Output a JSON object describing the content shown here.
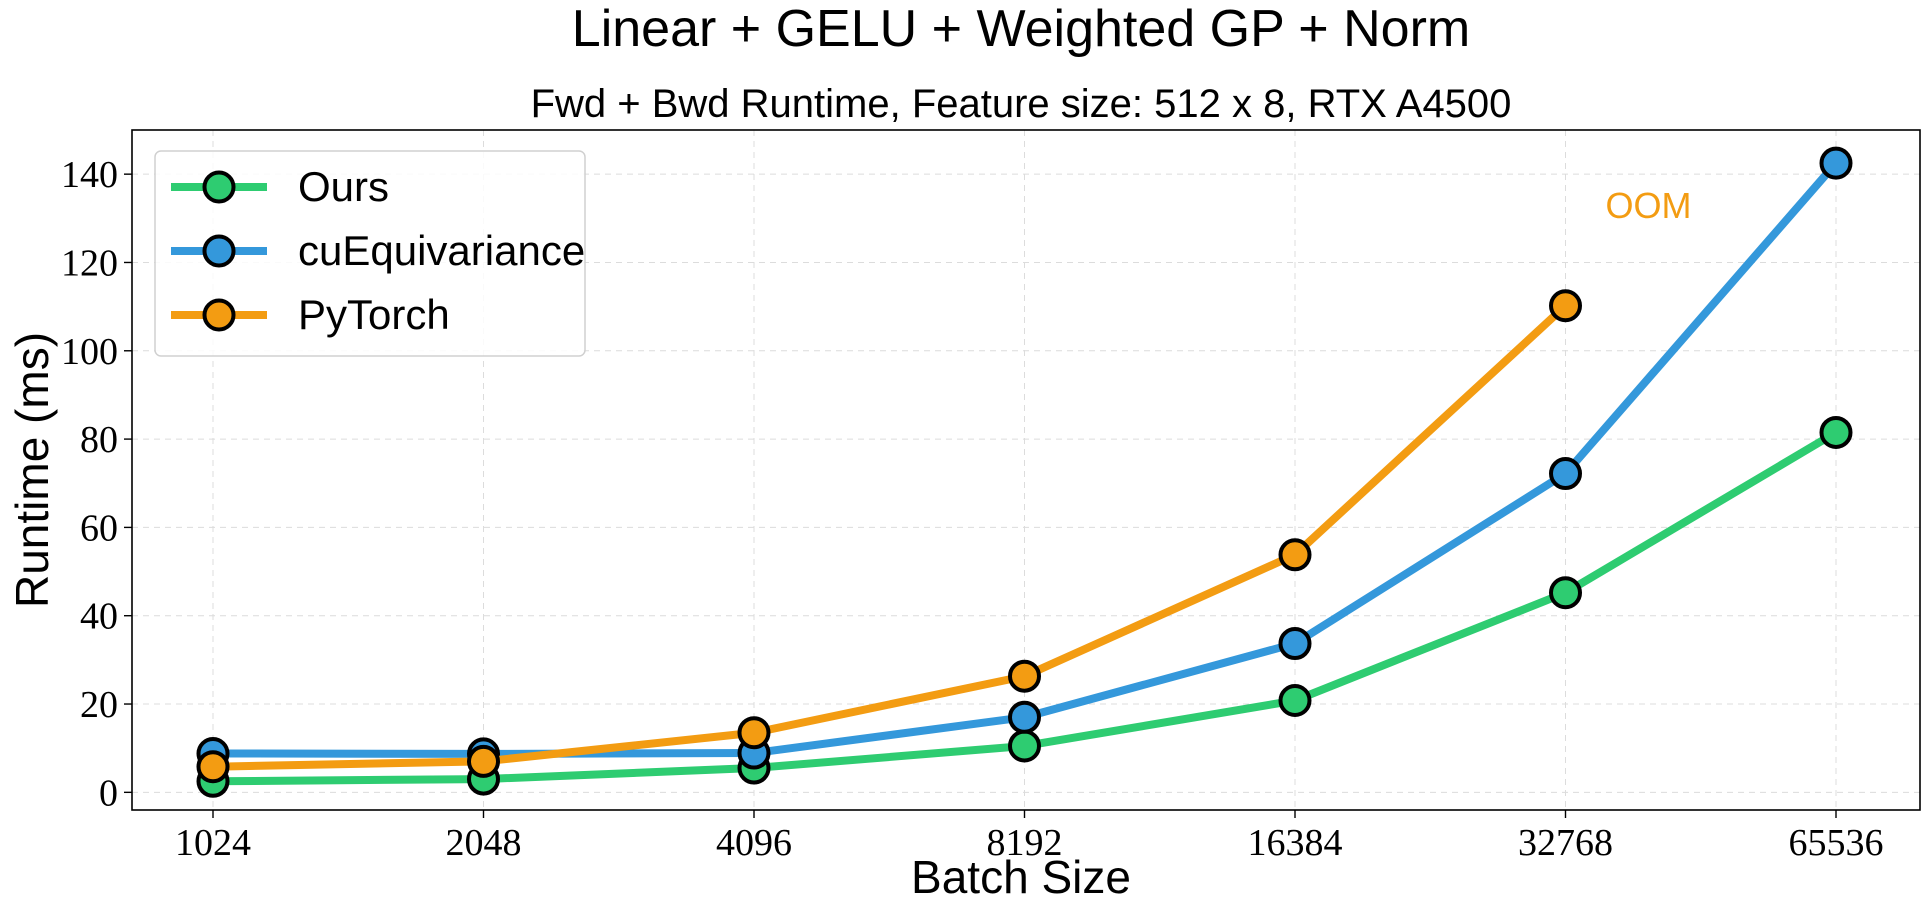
{
  "chart_data": {
    "type": "line",
    "title": "Linear + GELU + Weighted GP + Norm",
    "subtitle": "Fwd + Bwd Runtime, Feature size: 512 x 8, RTX A4500",
    "xlabel": "Batch Size",
    "ylabel": "Runtime (ms)",
    "categories": [
      "1024",
      "2048",
      "4096",
      "8192",
      "16384",
      "32768",
      "65536"
    ],
    "ylim": [
      -4,
      150
    ],
    "yticks": [
      0,
      20,
      40,
      60,
      80,
      100,
      120,
      140
    ],
    "grid": true,
    "legend_position": "top-left",
    "series": [
      {
        "name": "Ours",
        "color": "#2ecc71",
        "values": [
          2.5,
          3.0,
          5.5,
          10.5,
          20.8,
          45.2,
          81.5
        ]
      },
      {
        "name": "cuEquivariance",
        "color": "#3498db",
        "values": [
          8.8,
          8.7,
          8.9,
          17.0,
          33.7,
          72.2,
          142.5
        ]
      },
      {
        "name": "PyTorch",
        "color": "#f39c12",
        "values": [
          5.8,
          7.0,
          13.5,
          26.3,
          53.8,
          110.2,
          null
        ]
      }
    ],
    "annotations": [
      {
        "text": "OOM",
        "color": "#f39c12",
        "x_category": "32768",
        "y": 133
      }
    ]
  }
}
